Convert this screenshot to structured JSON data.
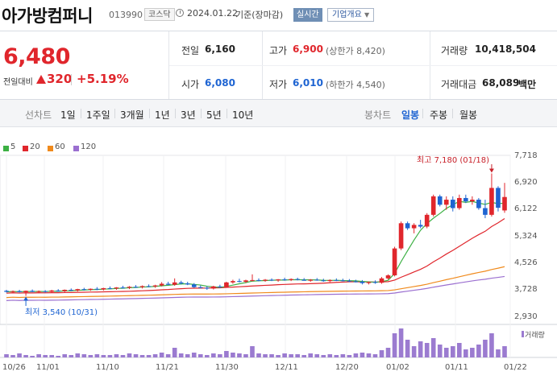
{
  "header": {
    "company_name": "아가방컴퍼니",
    "stock_code": "013990",
    "market": "코스닥",
    "date": "2024.01.22",
    "basis": "기준(장마감)",
    "realtime_label": "실시간",
    "company_info_label": "기업개요"
  },
  "price": {
    "current": "6,480",
    "prev_label": "전일대비",
    "change": "320",
    "change_pct": "+5.19%"
  },
  "quote": {
    "prev_close_label": "전일",
    "prev_close": "6,160",
    "high_label": "고가",
    "high": "6,900",
    "upper_limit": "(상한가 8,420)",
    "volume_label": "거래량",
    "volume": "10,418,504",
    "open_label": "시가",
    "open": "6,080",
    "low_label": "저가",
    "low": "6,010",
    "lower_limit": "(하한가 4,540)",
    "value_label": "거래대금",
    "value": "68,089",
    "value_unit": "백만"
  },
  "tabs": {
    "line_chart": "선차트",
    "d1": "1일",
    "w1": "1주일",
    "m3": "3개월",
    "y1": "1년",
    "y3": "3년",
    "y5": "5년",
    "y10": "10년",
    "candle_chart": "봉차트",
    "daily": "일봉",
    "weekly": "주봉",
    "monthly": "월봉"
  },
  "colors": {
    "up": "#e0262c",
    "down": "#1e64d2",
    "ma5": "#3cb043",
    "ma20": "#e0262c",
    "ma60": "#f08a1c",
    "ma120": "#9b6fd0"
  },
  "chart_data": {
    "type": "candlestick",
    "legend": [
      "5",
      "20",
      "60",
      "120"
    ],
    "y_ticks": [
      "7,718",
      "6,920",
      "6,122",
      "5,324",
      "4,526",
      "3,728",
      "2,930"
    ],
    "ylim": [
      2930,
      7718
    ],
    "x_ticks": [
      "10/26",
      "11/01",
      "11/10",
      "11/21",
      "11/30",
      "12/11",
      "12/20",
      "01/02",
      "01/11",
      "01/22"
    ],
    "high_annotation": "최고 7,180 (01/18)",
    "low_annotation": "최저 3,540 (10/31)",
    "volume_label": "거래량",
    "candles": [
      [
        3690,
        3720,
        3640,
        3660
      ],
      [
        3660,
        3700,
        3620,
        3680
      ],
      [
        3680,
        3720,
        3640,
        3650
      ],
      [
        3650,
        3700,
        3540,
        3690
      ],
      [
        3690,
        3730,
        3650,
        3660
      ],
      [
        3660,
        3700,
        3620,
        3680
      ],
      [
        3680,
        3710,
        3640,
        3660
      ],
      [
        3660,
        3720,
        3640,
        3700
      ],
      [
        3700,
        3740,
        3660,
        3680
      ],
      [
        3680,
        3730,
        3650,
        3720
      ],
      [
        3720,
        3760,
        3680,
        3700
      ],
      [
        3700,
        3750,
        3670,
        3740
      ],
      [
        3740,
        3780,
        3700,
        3720
      ],
      [
        3720,
        3760,
        3690,
        3750
      ],
      [
        3750,
        3800,
        3710,
        3730
      ],
      [
        3730,
        3780,
        3700,
        3770
      ],
      [
        3770,
        3820,
        3740,
        3760
      ],
      [
        3760,
        3800,
        3720,
        3790
      ],
      [
        3790,
        3840,
        3760,
        3780
      ],
      [
        3780,
        3830,
        3740,
        3810
      ],
      [
        3810,
        3860,
        3780,
        3800
      ],
      [
        3800,
        3850,
        3760,
        3830
      ],
      [
        3830,
        3880,
        3800,
        3820
      ],
      [
        3820,
        3870,
        3780,
        3850
      ],
      [
        3850,
        3950,
        3820,
        3900
      ],
      [
        3900,
        3960,
        3860,
        3870
      ],
      [
        3870,
        4060,
        3840,
        3940
      ],
      [
        3940,
        3990,
        3880,
        3910
      ],
      [
        3910,
        3960,
        3860,
        3880
      ],
      [
        3880,
        3920,
        3780,
        3800
      ],
      [
        3800,
        3850,
        3760,
        3780
      ],
      [
        3780,
        3830,
        3720,
        3760
      ],
      [
        3760,
        3840,
        3730,
        3820
      ],
      [
        3820,
        3870,
        3780,
        3800
      ],
      [
        3800,
        3960,
        3780,
        3940
      ],
      [
        3940,
        4020,
        3900,
        3980
      ],
      [
        3980,
        4050,
        3940,
        3960
      ],
      [
        3960,
        4020,
        3920,
        4000
      ],
      [
        4000,
        4180,
        3970,
        4010
      ],
      [
        4010,
        4060,
        3970,
        3990
      ],
      [
        3990,
        4040,
        3960,
        4020
      ],
      [
        4020,
        4060,
        3980,
        4000
      ],
      [
        4000,
        4040,
        3960,
        4030
      ],
      [
        4030,
        4080,
        3990,
        4010
      ],
      [
        4010,
        4060,
        3980,
        4040
      ],
      [
        4040,
        4080,
        4000,
        4020
      ],
      [
        4020,
        4070,
        3990,
        3990
      ],
      [
        3990,
        4040,
        3960,
        4020
      ],
      [
        4020,
        4070,
        3990,
        4000
      ],
      [
        4000,
        4050,
        3960,
        3980
      ],
      [
        3980,
        4030,
        3950,
        4010
      ],
      [
        4010,
        4060,
        3980,
        4000
      ],
      [
        4000,
        4050,
        3970,
        3990
      ],
      [
        3990,
        4040,
        3950,
        3970
      ],
      [
        3970,
        4020,
        3940,
        3960
      ],
      [
        3960,
        4010,
        3880,
        3920
      ],
      [
        3920,
        3970,
        3880,
        3950
      ],
      [
        3950,
        4000,
        3900,
        3930
      ],
      [
        3930,
        4100,
        3900,
        4060
      ],
      [
        4060,
        4180,
        4030,
        4150
      ],
      [
        4150,
        5000,
        4120,
        4950
      ],
      [
        4950,
        5750,
        4900,
        5700
      ],
      [
        5700,
        5750,
        5500,
        5550
      ],
      [
        5550,
        5700,
        5400,
        5650
      ],
      [
        5650,
        5800,
        5550,
        5600
      ],
      [
        5600,
        6000,
        5550,
        5950
      ],
      [
        5950,
        6550,
        5900,
        6500
      ],
      [
        6500,
        6550,
        6200,
        6250
      ],
      [
        6250,
        6500,
        6100,
        6400
      ],
      [
        6400,
        6500,
        6050,
        6150
      ],
      [
        6150,
        6550,
        6100,
        6450
      ],
      [
        6450,
        6550,
        6300,
        6350
      ],
      [
        6350,
        6500,
        6250,
        6400
      ],
      [
        6400,
        6450,
        6100,
        6150
      ],
      [
        6150,
        6400,
        5850,
        5950
      ],
      [
        5950,
        7180,
        5900,
        6750
      ],
      [
        6750,
        6800,
        6050,
        6160
      ],
      [
        6080,
        6900,
        6010,
        6480
      ]
    ],
    "volume_bars_x": [
      0.42,
      0.45,
      0.48,
      0.52,
      0.55,
      0.58,
      0.6,
      0.62,
      0.64,
      0.66,
      0.68
    ]
  }
}
